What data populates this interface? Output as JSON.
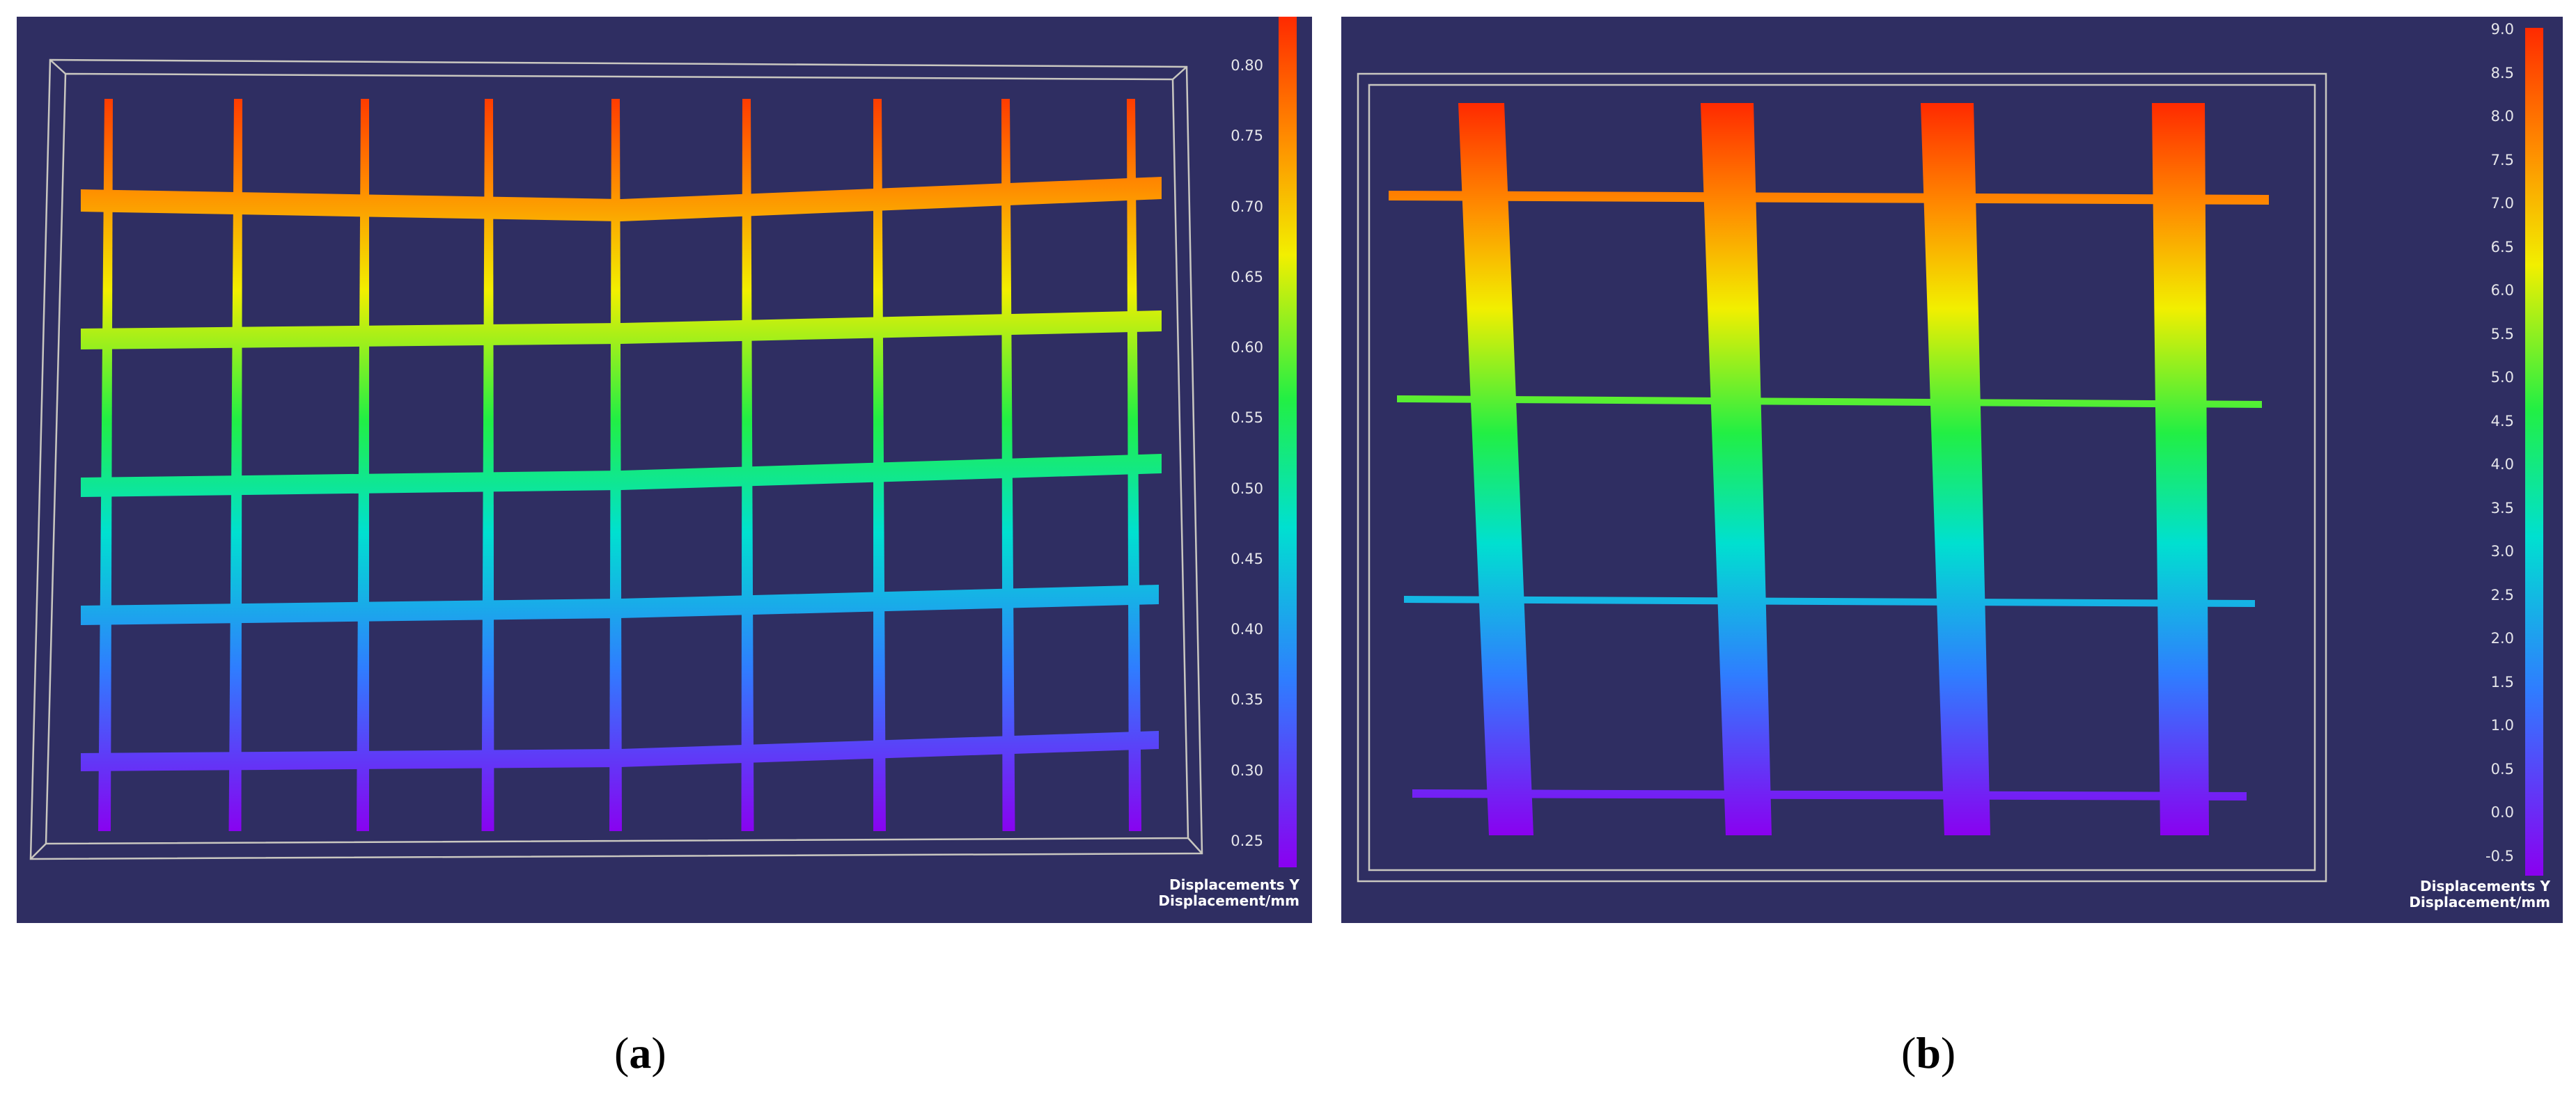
{
  "panels": [
    {
      "id": "a",
      "caption_letter": "a",
      "colorbar": {
        "title": "Displacements Y",
        "subtitle": "Displacement/mm",
        "min": 0.23,
        "max": 0.83,
        "ticks": [
          "0.80",
          "0.75",
          "0.70",
          "0.65",
          "0.60",
          "0.55",
          "0.50",
          "0.45",
          "0.40",
          "0.35",
          "0.30",
          "0.25"
        ]
      }
    },
    {
      "id": "b",
      "caption_letter": "b",
      "colorbar": {
        "title": "Displacements Y",
        "subtitle": "Displacement/mm",
        "min": -0.8,
        "max": 9.0,
        "ticks": [
          "9.0",
          "8.5",
          "8.0",
          "7.5",
          "7.0",
          "6.5",
          "6.0",
          "5.5",
          "5.0",
          "4.5",
          "4.0",
          "3.5",
          "3.0",
          "2.5",
          "2.0",
          "1.5",
          "1.0",
          "0.5",
          "0.0",
          "-0.5"
        ]
      }
    }
  ],
  "colors": {
    "background": "#2f2e62",
    "frame": "#c9c7c0",
    "scale": [
      "#8a00f0",
      "#2f7dff",
      "#00e0d0",
      "#22ef44",
      "#f2ef00",
      "#ff8a00",
      "#ff2a00"
    ]
  }
}
